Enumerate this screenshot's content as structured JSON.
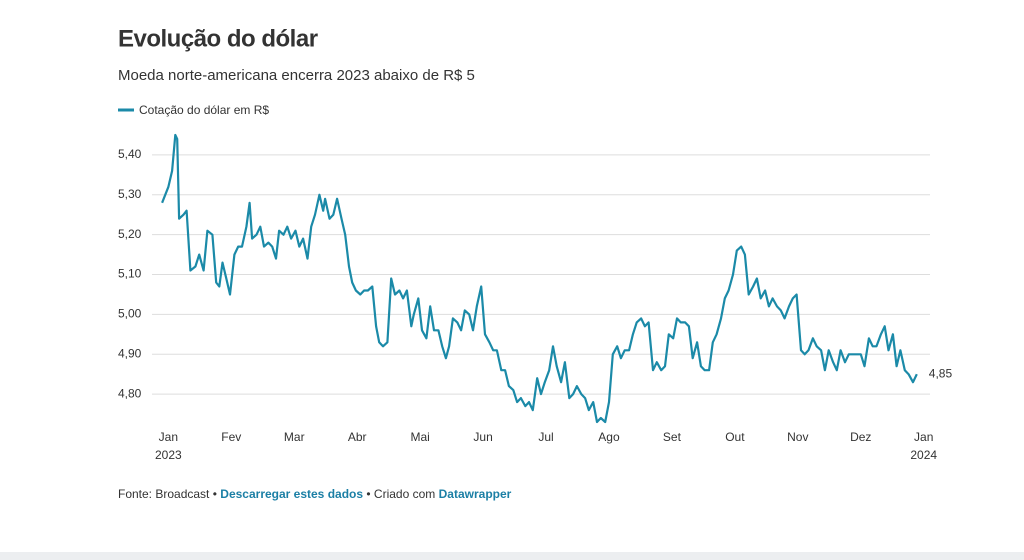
{
  "chart_data": {
    "type": "line",
    "title": "Evolução do dólar",
    "subtitle": "Moeda norte-americana encerra 2023 abaixo de R$ 5",
    "xlim": [
      -0.8,
      12.1
    ],
    "ylim": [
      4.71,
      5.46
    ],
    "grid": true,
    "xticks": [
      {
        "value": 0,
        "label": "Jan"
      },
      {
        "value": 1,
        "label": "Fev"
      },
      {
        "value": 2,
        "label": "Mar"
      },
      {
        "value": 3,
        "label": "Abr"
      },
      {
        "value": 4,
        "label": "Mai"
      },
      {
        "value": 5,
        "label": "Jun"
      },
      {
        "value": 6,
        "label": "Jul"
      },
      {
        "value": 7,
        "label": "Ago"
      },
      {
        "value": 8,
        "label": "Set"
      },
      {
        "value": 9,
        "label": "Out"
      },
      {
        "value": 10,
        "label": "Nov"
      },
      {
        "value": 11,
        "label": "Dez"
      },
      {
        "value": 12,
        "label": "Jan"
      }
    ],
    "year_labels": [
      {
        "value": 0,
        "label": "2023"
      },
      {
        "value": 12,
        "label": "2024"
      }
    ],
    "yticks": [
      {
        "value": 4.8,
        "label": "4,80"
      },
      {
        "value": 4.9,
        "label": "4,90"
      },
      {
        "value": 5.0,
        "label": "5,00"
      },
      {
        "value": 5.1,
        "label": "5,10"
      },
      {
        "value": 5.2,
        "label": "5,20"
      },
      {
        "value": 5.3,
        "label": "5,30"
      },
      {
        "value": 5.4,
        "label": "5,40"
      }
    ],
    "x": [
      -0.1,
      0.0,
      0.06,
      0.11,
      0.14,
      0.17,
      0.24,
      0.29,
      0.35,
      0.43,
      0.49,
      0.56,
      0.62,
      0.7,
      0.76,
      0.81,
      0.86,
      0.92,
      0.98,
      1.05,
      1.11,
      1.17,
      1.24,
      1.29,
      1.33,
      1.4,
      1.46,
      1.52,
      1.59,
      1.65,
      1.71,
      1.76,
      1.83,
      1.89,
      1.95,
      2.02,
      2.08,
      2.14,
      2.21,
      2.27,
      2.33,
      2.4,
      2.46,
      2.49,
      2.56,
      2.62,
      2.68,
      2.75,
      2.81,
      2.87,
      2.92,
      2.98,
      3.05,
      3.11,
      3.17,
      3.24,
      3.3,
      3.35,
      3.41,
      3.48,
      3.54,
      3.6,
      3.67,
      3.73,
      3.79,
      3.86,
      3.9,
      3.97,
      4.03,
      4.1,
      4.16,
      4.22,
      4.29,
      4.35,
      4.41,
      4.46,
      4.52,
      4.59,
      4.65,
      4.71,
      4.78,
      4.84,
      4.9,
      4.97,
      5.03,
      5.1,
      5.16,
      5.22,
      5.29,
      5.35,
      5.41,
      5.48,
      5.54,
      5.6,
      5.67,
      5.73,
      5.79,
      5.86,
      5.92,
      5.98,
      6.05,
      6.11,
      6.17,
      6.24,
      6.3,
      6.37,
      6.43,
      6.49,
      6.56,
      6.62,
      6.68,
      6.75,
      6.81,
      6.87,
      6.94,
      7.0,
      7.06,
      7.13,
      7.19,
      7.25,
      7.32,
      7.38,
      7.44,
      7.51,
      7.57,
      7.63,
      7.7,
      7.76,
      7.83,
      7.89,
      7.95,
      8.02,
      8.08,
      8.14,
      8.21,
      8.27,
      8.33,
      8.4,
      8.46,
      8.52,
      8.59,
      8.65,
      8.71,
      8.78,
      8.84,
      8.9,
      8.97,
      9.03,
      9.1,
      9.16,
      9.22,
      9.29,
      9.35,
      9.41,
      9.48,
      9.54,
      9.6,
      9.67,
      9.73,
      9.79,
      9.86,
      9.92,
      9.98,
      10.05,
      10.11,
      10.17,
      10.24,
      10.3,
      10.37,
      10.43,
      10.49,
      10.56,
      10.62,
      10.68,
      10.75,
      10.81,
      10.87,
      10.94,
      11.0,
      11.06,
      11.13,
      11.19,
      11.25,
      11.32,
      11.38,
      11.44,
      11.51,
      11.57,
      11.63,
      11.7,
      11.76,
      11.83,
      11.89
    ],
    "series": [
      {
        "name": "Cotação do dólar em R$",
        "color": "#1b8aa8",
        "last_value_label": "4,85",
        "values": [
          5.28,
          5.32,
          5.36,
          5.45,
          5.44,
          5.24,
          5.25,
          5.26,
          5.11,
          5.12,
          5.15,
          5.11,
          5.21,
          5.2,
          5.08,
          5.07,
          5.13,
          5.09,
          5.05,
          5.15,
          5.17,
          5.17,
          5.22,
          5.28,
          5.19,
          5.2,
          5.22,
          5.17,
          5.18,
          5.17,
          5.14,
          5.21,
          5.2,
          5.22,
          5.19,
          5.21,
          5.17,
          5.19,
          5.14,
          5.22,
          5.25,
          5.3,
          5.26,
          5.29,
          5.24,
          5.25,
          5.29,
          5.24,
          5.2,
          5.12,
          5.08,
          5.06,
          5.05,
          5.06,
          5.06,
          5.07,
          4.97,
          4.93,
          4.92,
          4.93,
          5.09,
          5.05,
          5.06,
          5.04,
          5.06,
          4.97,
          5.0,
          5.04,
          4.96,
          4.94,
          5.02,
          4.96,
          4.96,
          4.92,
          4.89,
          4.92,
          4.99,
          4.98,
          4.96,
          5.01,
          5.0,
          4.96,
          5.02,
          5.07,
          4.95,
          4.93,
          4.91,
          4.91,
          4.86,
          4.86,
          4.82,
          4.81,
          4.78,
          4.79,
          4.77,
          4.78,
          4.76,
          4.84,
          4.8,
          4.83,
          4.86,
          4.92,
          4.87,
          4.83,
          4.88,
          4.79,
          4.8,
          4.82,
          4.8,
          4.79,
          4.76,
          4.78,
          4.73,
          4.74,
          4.73,
          4.78,
          4.9,
          4.92,
          4.89,
          4.91,
          4.91,
          4.95,
          4.98,
          4.99,
          4.97,
          4.98,
          4.86,
          4.88,
          4.86,
          4.87,
          4.95,
          4.94,
          4.99,
          4.98,
          4.98,
          4.97,
          4.89,
          4.93,
          4.87,
          4.86,
          4.86,
          4.93,
          4.95,
          4.99,
          5.04,
          5.06,
          5.1,
          5.16,
          5.17,
          5.15,
          5.05,
          5.07,
          5.09,
          5.04,
          5.06,
          5.02,
          5.04,
          5.02,
          5.01,
          4.99,
          5.02,
          5.04,
          5.05,
          4.91,
          4.9,
          4.91,
          4.94,
          4.92,
          4.91,
          4.86,
          4.91,
          4.88,
          4.86,
          4.91,
          4.88,
          4.9,
          4.9,
          4.9,
          4.9,
          4.87,
          4.94,
          4.92,
          4.92,
          4.95,
          4.97,
          4.91,
          4.95,
          4.87,
          4.91,
          4.86,
          4.85,
          4.83,
          4.85
        ]
      }
    ],
    "footer": {
      "source": "Fonte: Broadcast",
      "separator": "•",
      "download": "Descarregar estes dados",
      "credit": "Criado com",
      "tool": "Datawrapper"
    }
  }
}
